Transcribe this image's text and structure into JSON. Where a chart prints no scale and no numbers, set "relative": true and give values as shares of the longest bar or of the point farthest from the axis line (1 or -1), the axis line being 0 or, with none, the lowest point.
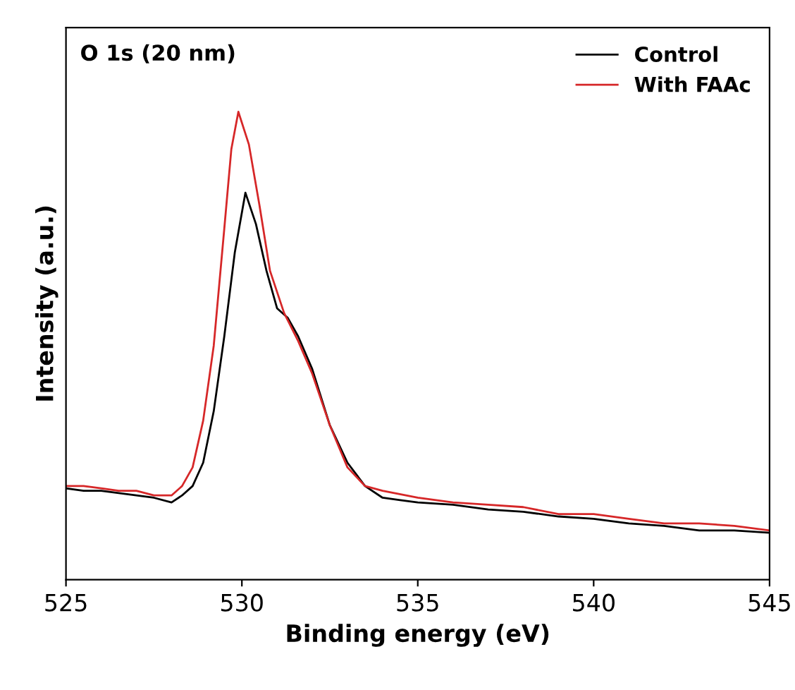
{
  "chart_data": {
    "type": "line",
    "xlabel": "Binding energy (eV)",
    "ylabel": "Intensity (a.u.)",
    "annotations": [
      "O 1s (20 nm)"
    ],
    "relative": true,
    "xlim": [
      525,
      545
    ],
    "xticks": [
      525,
      530,
      535,
      540,
      545
    ],
    "legend": "top right",
    "tick_labels": "x",
    "series": [
      {
        "name": "Control",
        "color": "#000000",
        "x": [
          525,
          525.5,
          526,
          526.5,
          527,
          527.5,
          528,
          528.3,
          528.6,
          528.9,
          529.2,
          529.5,
          529.8,
          530.1,
          530.4,
          530.7,
          531,
          531.3,
          531.6,
          532,
          532.5,
          533,
          533.5,
          534,
          534.5,
          535,
          536,
          537,
          538,
          539,
          540,
          541,
          542,
          543,
          544,
          545
        ],
        "values": [
          0.195,
          0.19,
          0.19,
          0.185,
          0.18,
          0.175,
          0.165,
          0.18,
          0.2,
          0.25,
          0.36,
          0.52,
          0.7,
          0.827,
          0.76,
          0.66,
          0.58,
          0.56,
          0.52,
          0.45,
          0.33,
          0.25,
          0.2,
          0.175,
          0.17,
          0.165,
          0.16,
          0.15,
          0.145,
          0.135,
          0.13,
          0.12,
          0.115,
          0.105,
          0.105,
          0.1
        ]
      },
      {
        "name": "With FAAc",
        "color": "#d62728",
        "x": [
          525,
          525.5,
          526,
          526.5,
          527,
          527.5,
          528,
          528.3,
          528.6,
          528.9,
          529.2,
          529.5,
          529.7,
          529.9,
          530.2,
          530.5,
          530.8,
          531.2,
          531.6,
          532,
          532.5,
          533,
          533.5,
          534,
          535,
          536,
          537,
          538,
          539,
          540,
          541,
          542,
          543,
          544,
          545
        ],
        "values": [
          0.2,
          0.2,
          0.195,
          0.19,
          0.19,
          0.18,
          0.18,
          0.2,
          0.24,
          0.34,
          0.5,
          0.75,
          0.92,
          1.0,
          0.93,
          0.8,
          0.66,
          0.57,
          0.51,
          0.44,
          0.33,
          0.24,
          0.2,
          0.19,
          0.175,
          0.165,
          0.16,
          0.155,
          0.14,
          0.14,
          0.13,
          0.12,
          0.12,
          0.115,
          0.105
        ]
      }
    ]
  }
}
